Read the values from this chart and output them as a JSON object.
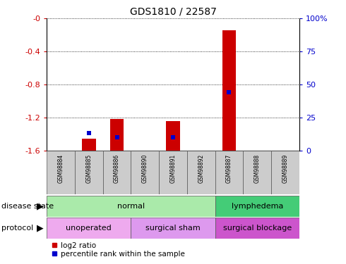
{
  "title": "GDS1810 / 22587",
  "samples": [
    "GSM98884",
    "GSM98885",
    "GSM98886",
    "GSM98890",
    "GSM98891",
    "GSM98892",
    "GSM98887",
    "GSM98888",
    "GSM98889"
  ],
  "log2_ratio": [
    0.0,
    -1.46,
    -1.22,
    0.0,
    -1.24,
    0.0,
    -0.14,
    0.0,
    0.0
  ],
  "percentile_rank": [
    0.0,
    13.0,
    10.0,
    0.0,
    10.0,
    0.0,
    44.0,
    0.0,
    0.0
  ],
  "ylim_left": [
    -1.6,
    0.0
  ],
  "ylim_right": [
    0.0,
    100.0
  ],
  "yticks_left": [
    -1.6,
    -1.2,
    -0.8,
    -0.4,
    0.0
  ],
  "yticks_right": [
    0,
    25,
    50,
    75,
    100
  ],
  "left_color": "#cc0000",
  "right_color": "#0000cc",
  "bar_red": "#cc0000",
  "bar_blue": "#0000cc",
  "disease_state": [
    {
      "label": "normal",
      "start": 0,
      "end": 6,
      "color": "#aaeaaa"
    },
    {
      "label": "lymphedema",
      "start": 6,
      "end": 9,
      "color": "#44cc77"
    }
  ],
  "protocol": [
    {
      "label": "unoperated",
      "start": 0,
      "end": 3,
      "color": "#eeaaee"
    },
    {
      "label": "surgical sham",
      "start": 3,
      "end": 6,
      "color": "#dd99ee"
    },
    {
      "label": "surgical blockage",
      "start": 6,
      "end": 9,
      "color": "#cc55cc"
    }
  ],
  "legend_red_label": "log2 ratio",
  "legend_blue_label": "percentile rank within the sample",
  "background_color": "#ffffff"
}
